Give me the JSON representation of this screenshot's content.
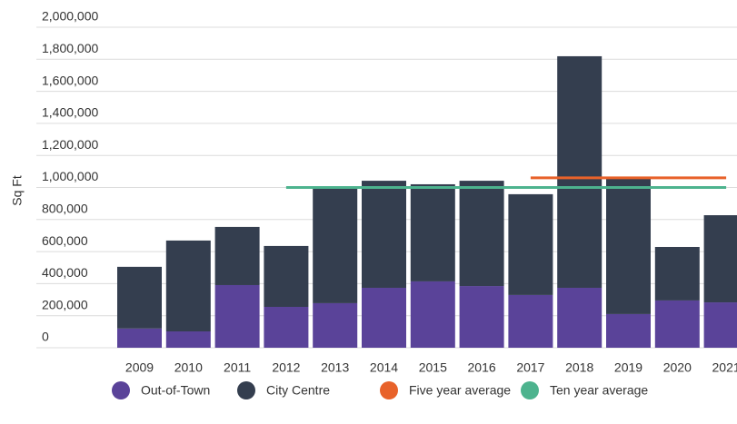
{
  "chart_data": {
    "type": "bar",
    "stacked": true,
    "y_label": "Sq Ft",
    "categories": [
      "2009",
      "2010",
      "2011",
      "2012",
      "2013",
      "2014",
      "2015",
      "2016",
      "2017",
      "2018",
      "2019",
      "2020",
      "2021"
    ],
    "series": [
      {
        "name": "Out-of-Town",
        "color": "#5a4399",
        "values": [
          120000,
          102000,
          391000,
          255000,
          278000,
          374000,
          414000,
          385000,
          329000,
          374000,
          210000,
          295000,
          283000
        ]
      },
      {
        "name": "City Centre",
        "color": "#343e4f",
        "values": [
          385000,
          567000,
          363000,
          380000,
          719000,
          668000,
          606000,
          657000,
          629000,
          1445000,
          855000,
          334000,
          544000
        ]
      },
      {
        "name": "Five year average",
        "color": "#e8622a",
        "type": "line",
        "values": [
          null,
          null,
          null,
          null,
          null,
          null,
          null,
          null,
          1060000,
          1060000,
          1060000,
          1060000,
          1060000
        ]
      },
      {
        "name": "Ten year average",
        "color": "#4db38e",
        "type": "line",
        "values": [
          null,
          null,
          null,
          1000000,
          1000000,
          1000000,
          1000000,
          1000000,
          1000000,
          1000000,
          1000000,
          1000000,
          1000000
        ]
      }
    ],
    "ylim": [
      0,
      2000000
    ],
    "yticks": [
      0,
      {
        "value": 200000,
        "label": "200,000"
      },
      {
        "value": 400000,
        "label": "400,000"
      },
      {
        "value": 600000,
        "label": "600,000"
      },
      {
        "value": 800000,
        "label": "800,000"
      },
      {
        "value": 1000000,
        "label": "1,000,000"
      },
      {
        "value": 1200000,
        "label": "1,200,000"
      },
      {
        "value": 1400000,
        "label": "1,400,000"
      },
      {
        "value": 1600000,
        "label": "1,600,000"
      },
      {
        "value": 1800000,
        "label": "1,800,000"
      },
      {
        "value": 2000000,
        "label": "2,000,000"
      }
    ],
    "grid": true,
    "legend": "bottom"
  }
}
